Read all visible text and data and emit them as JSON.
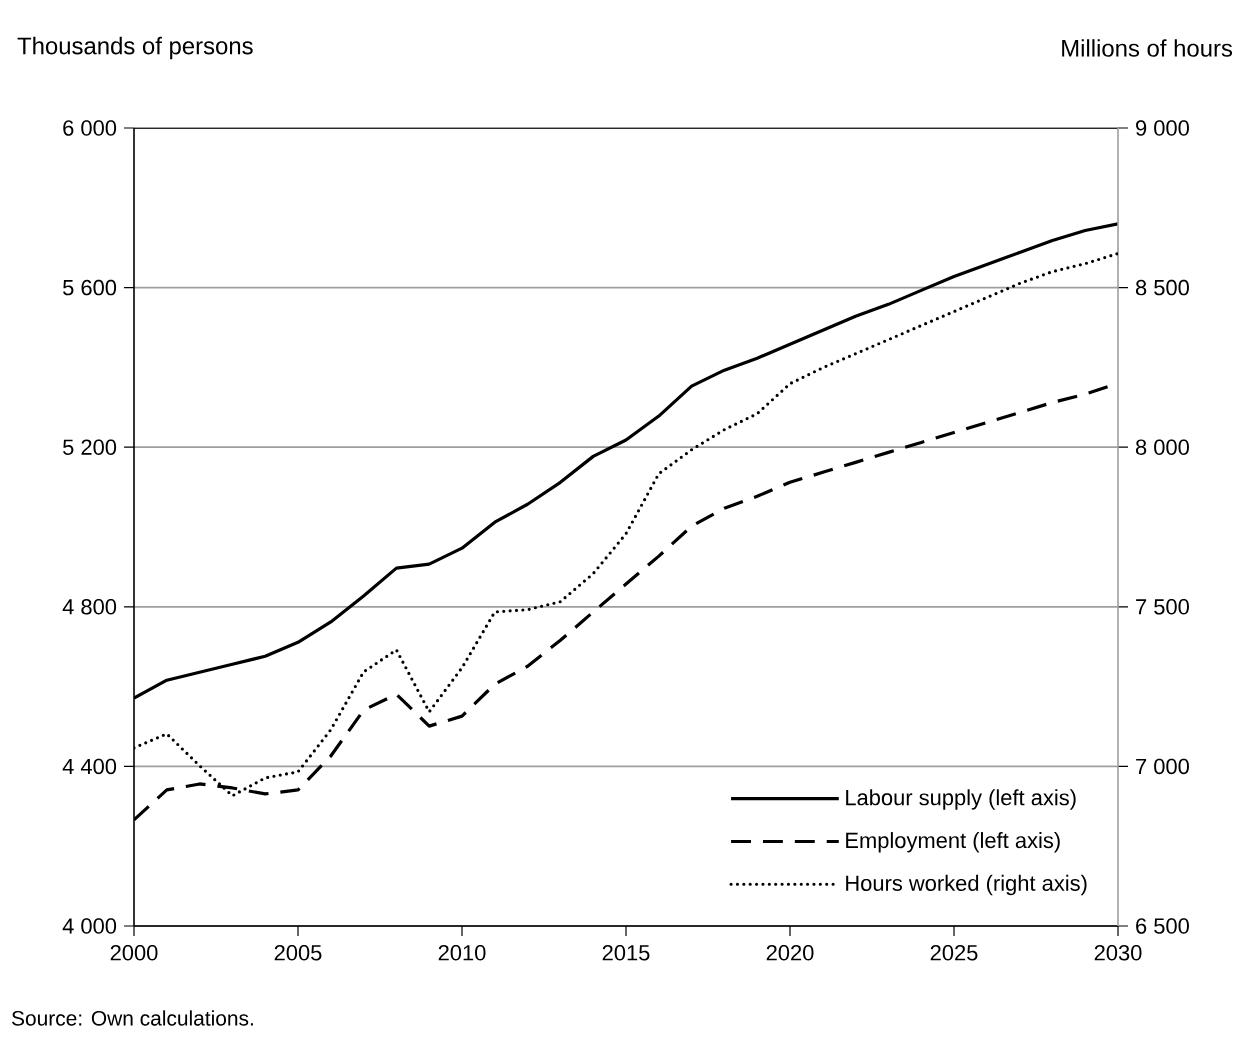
{
  "chart_data": {
    "type": "line",
    "ylabel": "Thousands of persons",
    "y2label": "Millions of hours",
    "x": [
      2000,
      2001,
      2002,
      2003,
      2004,
      2005,
      2006,
      2007,
      2008,
      2009,
      2010,
      2011,
      2012,
      2013,
      2014,
      2015,
      2016,
      2017,
      2018,
      2019,
      2020,
      2021,
      2022,
      2023,
      2024,
      2025,
      2026,
      2027,
      2028,
      2029,
      2030
    ],
    "series": [
      {
        "name": "Labour supply (left axis)",
        "color": "#000000",
        "line_style": "solid",
        "values": [
          4571,
          4616,
          4636,
          4656,
          4676,
          4711,
          4762,
          4827,
          4897,
          4907,
          4947,
          5012,
          5057,
          5112,
          5177,
          5218,
          5278,
          5353,
          5393,
          5423,
          5458,
          5493,
          5528,
          5558,
          5593,
          5628,
          5658,
          5688,
          5718,
          5743,
          5760
        ]
      },
      {
        "name": "Employment (left axis)",
        "color": "#000000",
        "line_style": "dashed",
        "values": [
          4266,
          4341,
          4356,
          4346,
          4331,
          4341,
          4426,
          4541,
          4581,
          4501,
          4526,
          4606,
          4651,
          4716,
          4787,
          4857,
          4927,
          5002,
          5047,
          5077,
          5112,
          5137,
          5162,
          5187,
          5212,
          5237,
          5262,
          5287,
          5312,
          5333,
          5360
        ]
      },
      {
        "name": "Hours worked (right axis)",
        "color": "#000000",
        "line_style": "dotted",
        "axis": "y2",
        "values": [
          7058,
          7102,
          7002,
          6908,
          6964,
          6983,
          7115,
          7296,
          7365,
          7171,
          7309,
          7484,
          7491,
          7516,
          7604,
          7729,
          7917,
          7992,
          8055,
          8105,
          8199,
          8249,
          8293,
          8337,
          8381,
          8425,
          8469,
          8513,
          8550,
          8575,
          8607
        ]
      }
    ],
    "xlim": [
      2000,
      2030
    ],
    "xticks": [
      2000,
      2005,
      2010,
      2015,
      2020,
      2025,
      2030
    ],
    "ylim": [
      4000,
      6000
    ],
    "yticks": [
      {
        "value": 4000,
        "label": "4 000"
      },
      {
        "value": 4400,
        "label": "4 400"
      },
      {
        "value": 4800,
        "label": "4 800"
      },
      {
        "value": 5200,
        "label": "5 200"
      },
      {
        "value": 5600,
        "label": "5 600"
      },
      {
        "value": 6000,
        "label": "6 000"
      }
    ],
    "y2lim": [
      6500,
      9000
    ],
    "y2ticks": [
      {
        "value": 6500,
        "label": "6 500"
      },
      {
        "value": 7000,
        "label": "7 000"
      },
      {
        "value": 7500,
        "label": "7 500"
      },
      {
        "value": 8000,
        "label": "8 000"
      },
      {
        "value": 8500,
        "label": "8 500"
      },
      {
        "value": 9000,
        "label": "9 000"
      }
    ],
    "grid": "y",
    "legend": "bottom right",
    "marker": "none",
    "annotations": [
      "Source: Own calculations."
    ]
  }
}
